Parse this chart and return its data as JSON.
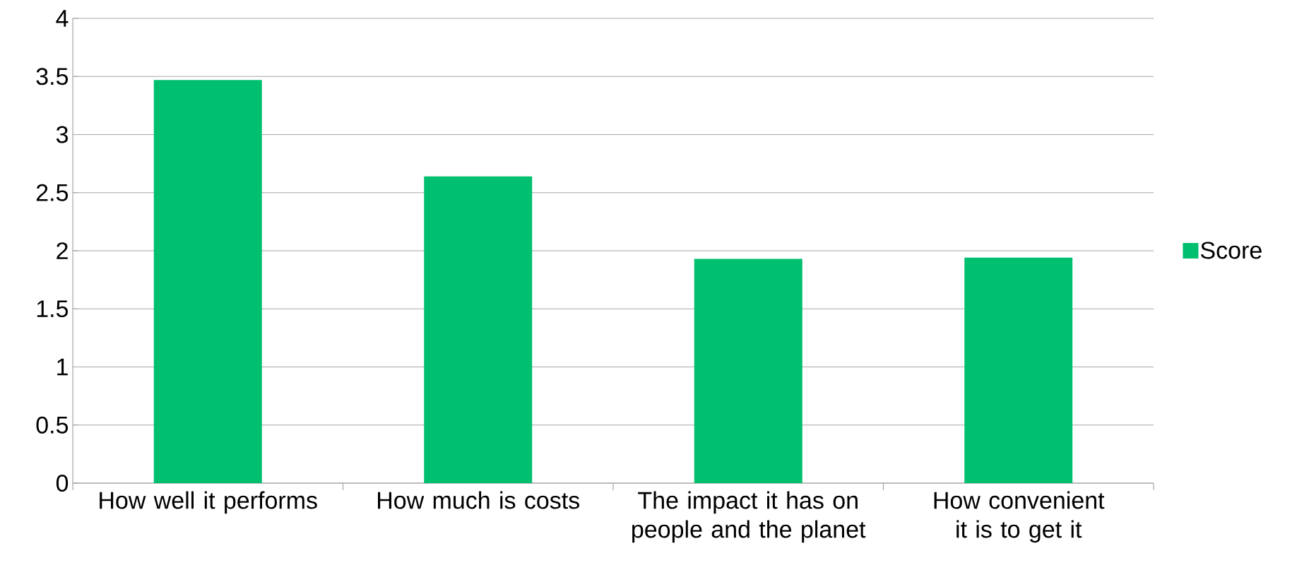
{
  "chart_data": {
    "type": "bar",
    "categories": [
      "How well it performs",
      "How much is costs",
      "The impact it has on people and the planet",
      "How convenient it is to get it"
    ],
    "series": [
      {
        "name": "Score",
        "color": "#00bf6f",
        "values": [
          3.47,
          2.64,
          1.93,
          1.94
        ]
      }
    ],
    "ylim": [
      0,
      4
    ],
    "yticks": [
      0,
      0.5,
      1,
      1.5,
      2,
      2.5,
      3,
      3.5,
      4
    ],
    "grid": "y",
    "legend": "right"
  }
}
